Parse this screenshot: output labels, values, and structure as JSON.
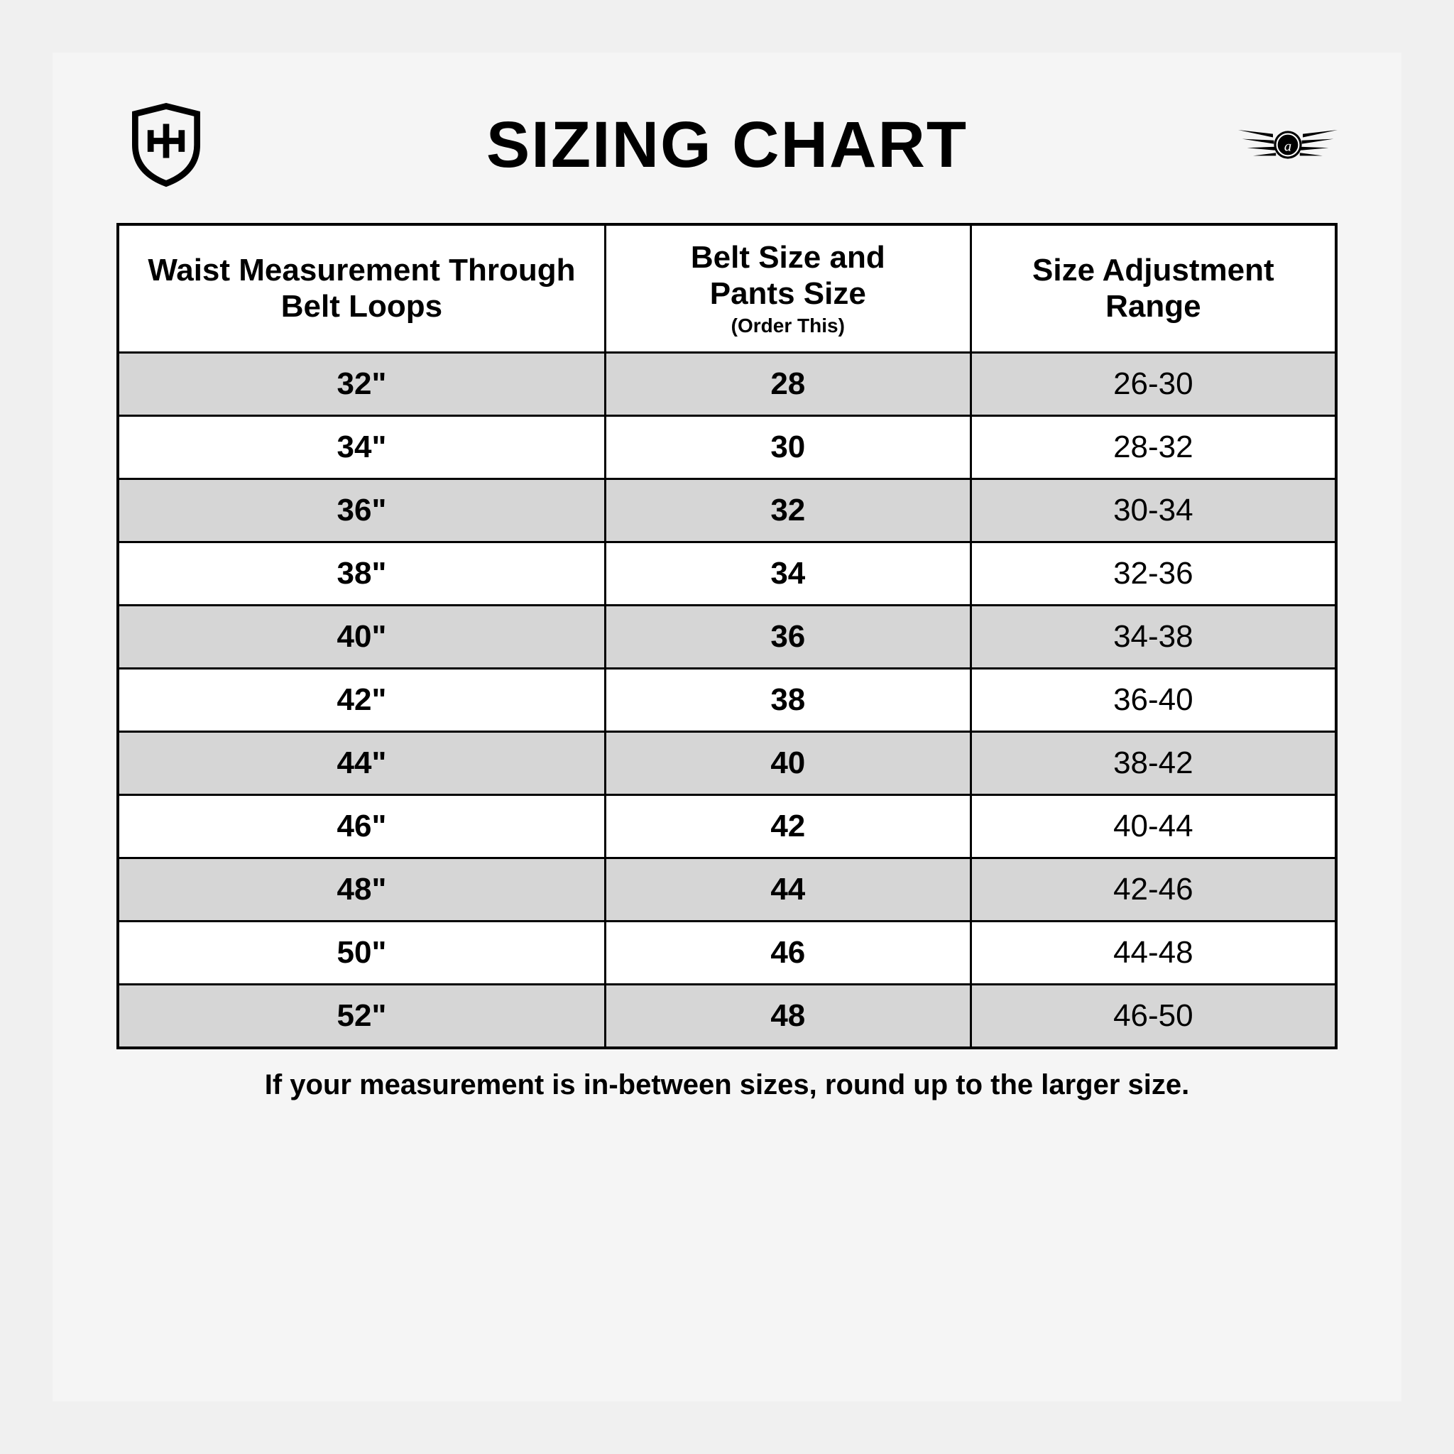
{
  "title": "SIZING CHART",
  "columns": {
    "c1": "Waist Measurement Through Belt Loops",
    "c2_line1": "Belt Size and",
    "c2_line2": "Pants Size",
    "c2_sub": "(Order This)",
    "c3_line1": "Size Adjustment",
    "c3_line2": "Range"
  },
  "rows": [
    {
      "waist": "32\"",
      "belt": "28",
      "range": "26-30"
    },
    {
      "waist": "34\"",
      "belt": "30",
      "range": "28-32"
    },
    {
      "waist": "36\"",
      "belt": "32",
      "range": "30-34"
    },
    {
      "waist": "38\"",
      "belt": "34",
      "range": "32-36"
    },
    {
      "waist": "40\"",
      "belt": "36",
      "range": "34-38"
    },
    {
      "waist": "42\"",
      "belt": "38",
      "range": "36-40"
    },
    {
      "waist": "44\"",
      "belt": "40",
      "range": "38-42"
    },
    {
      "waist": "46\"",
      "belt": "42",
      "range": "40-44"
    },
    {
      "waist": "48\"",
      "belt": "44",
      "range": "42-46"
    },
    {
      "waist": "50\"",
      "belt": "46",
      "range": "44-48"
    },
    {
      "waist": "52\"",
      "belt": "48",
      "range": "46-50"
    }
  ],
  "footnote": "If your measurement is in-between sizes, round up to the larger size.",
  "style": {
    "type": "table",
    "background_color": "#f5f5f5",
    "page_background": "#f0f0f0",
    "border_color": "#000000",
    "row_alt_bg": "#d6d6d6",
    "row_bg": "#ffffff",
    "header_bg": "#ffffff",
    "text_color": "#000000",
    "title_fontsize": 92,
    "title_fontweight": 900,
    "header_fontsize": 44,
    "cell_fontsize": 44,
    "subheader_fontsize": 28,
    "footnote_fontsize": 40,
    "border_width_outer": 4,
    "border_width_inner": 3,
    "column_widths_pct": [
      40,
      30,
      30
    ],
    "bold_columns": [
      0,
      1
    ],
    "regular_columns": [
      2
    ]
  }
}
